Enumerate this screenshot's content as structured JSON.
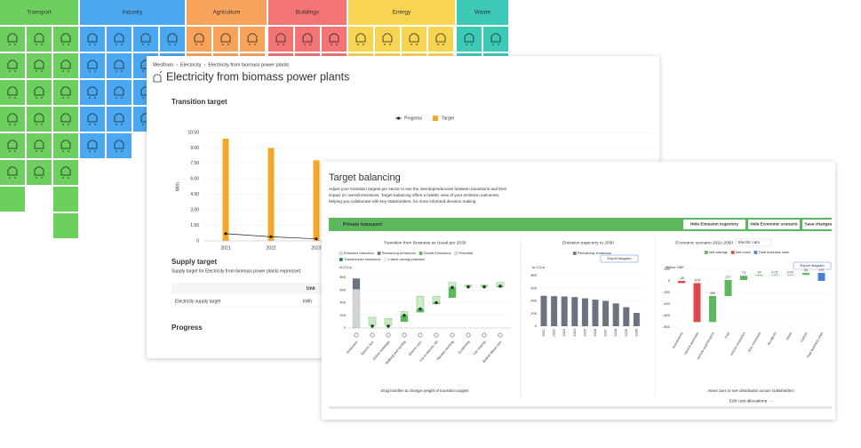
{
  "sectors": [
    {
      "name": "Transport",
      "color": "#6ccf5e"
    },
    {
      "name": "Industry",
      "color": "#4aa8f0"
    },
    {
      "name": "Agriculture",
      "color": "#f7a35c"
    },
    {
      "name": "Buildings",
      "color": "#f27474"
    },
    {
      "name": "Energy",
      "color": "#f7d553"
    },
    {
      "name": "Waste",
      "color": "#3ccab6"
    }
  ],
  "detail": {
    "breadcrumb": [
      "Westham",
      "Electricity",
      "Electricity from biomass power plants"
    ],
    "breadcrumb_separator": "›",
    "title": "Electricity from biomass power plants",
    "transition_target": {
      "title": "Transition target",
      "y_label": "Mt/h",
      "categories": [
        "2021",
        "2022",
        "2023"
      ],
      "series": [
        {
          "name": "Progress",
          "color": "#222222",
          "values": [
            0.7,
            0.4,
            0.2
          ]
        },
        {
          "name": "Target",
          "color": "#f5a623",
          "values": [
            9.9,
            9.0,
            7.8
          ]
        }
      ],
      "ylim": [
        0,
        10.5
      ],
      "yticks": [
        0,
        {
          "value": 1.5,
          "label": "1.50"
        },
        {
          "value": 3,
          "label": "3.00"
        },
        {
          "value": 4.5,
          "label": "4.50"
        },
        {
          "value": 6,
          "label": "6.00"
        },
        {
          "value": 7.5,
          "label": "7.50"
        },
        {
          "value": 9,
          "label": "9.00"
        },
        {
          "value": 10.5,
          "label": "10.50"
        }
      ],
      "grid": true
    },
    "supply_target": {
      "title": "Supply target",
      "subtitle": "Supply target for Electricity from biomass power plants expressed",
      "header": [
        "Unit"
      ],
      "rows": [
        [
          "Electricity supply target",
          "kWh"
        ]
      ]
    },
    "progress_title": "Progress"
  },
  "balancing": {
    "title": "Target balancing",
    "description": [
      "Adjust your transition targets per sector to see the interdependencies between transitions and their",
      "impact on overall emissions. Target balancing offers a holistic view of your emission outcomes,",
      "helping you collaborate with key stakeholders, for more informed decision making."
    ],
    "sector": "Private transport",
    "buttons": [
      "Hide Emission trajectory",
      "Hide Economic scenario",
      "Save changes"
    ],
    "transition": {
      "title": "Transition from Business as Usual per 2030",
      "legend": [
        {
          "name": "Emission reduction",
          "color": "#d8dde2"
        },
        {
          "name": "Remaining emissions",
          "color": "#6b7280"
        },
        {
          "name": "Saved Emissions",
          "color": "#5cb85c"
        },
        {
          "name": "Potential",
          "color": "#c9ecc3"
        },
        {
          "name": "Transformed emissions",
          "color": "#2e7d32"
        },
        {
          "name": "Latent saving potential",
          "color": "#eaf7e6"
        }
      ],
      "y_label": "kt CO₂e",
      "categories": [
        "Emissions",
        "Electric bus",
        "Online meetings",
        "Walking and cycling",
        "Electric cars",
        "Car to electric rail",
        "Remote working",
        "Ecodriving",
        "Car sharing",
        "Biofuel diesel cars"
      ],
      "low": [
        0,
        40,
        40,
        100,
        250,
        380,
        480,
        650,
        650,
        650
      ],
      "high": [
        780,
        170,
        150,
        260,
        500,
        500,
        720,
        680,
        680,
        720
      ],
      "dots": [
        null,
        30,
        30,
        200,
        300,
        400,
        640,
        650,
        650,
        660
      ],
      "ylim": [
        0,
        800
      ],
      "yticks": [
        0,
        200,
        400,
        600,
        800
      ],
      "note": "Drag handles to change weight of transition targets"
    },
    "trajectory": {
      "title": "Emission trajectory to 2030",
      "legend": [
        {
          "name": "Remaining emissions",
          "color": "#6b7280"
        }
      ],
      "export": "Export diagram",
      "y_label": "kt CO₂e",
      "categories": [
        "2021",
        "2022",
        "2023",
        "2024",
        "2025",
        "2026",
        "2027",
        "2028",
        "2029",
        "2030"
      ],
      "values": [
        480,
        475,
        470,
        460,
        440,
        420,
        400,
        360,
        300,
        210
      ],
      "ylim": [
        0,
        800
      ],
      "yticks": [
        0,
        200,
        400,
        600,
        800
      ]
    },
    "economic": {
      "title": "Economic scenario 2021-2050",
      "selector": "Electric cars",
      "legend": [
        {
          "name": "Net savings",
          "color": "#5cb85c"
        },
        {
          "name": "Net costs",
          "color": "#e0474c"
        },
        {
          "name": "Total business case",
          "color": "#4a7fd8"
        }
      ],
      "export": "Export diagram",
      "y_label": "Million GBP",
      "categories": [
        "Investments",
        "Vehicle purchase",
        "Vehicle maintenance",
        "Fuel",
        "Vehicle emissions",
        "NOx emissions",
        "Accidents",
        "Noise",
        "Carbon",
        "Total business case"
      ],
      "values": [
        -38,
        -674,
        450,
        277,
        74,
        14,
        0.01,
        0.01,
        34,
        137
      ],
      "ylim": [
        -800,
        200
      ],
      "yticks": [
        -800,
        -600,
        -400,
        -200,
        0,
        200
      ],
      "note": "Hover bars to see distribution across stakeholders",
      "link": "Edit cost allocations →"
    }
  }
}
